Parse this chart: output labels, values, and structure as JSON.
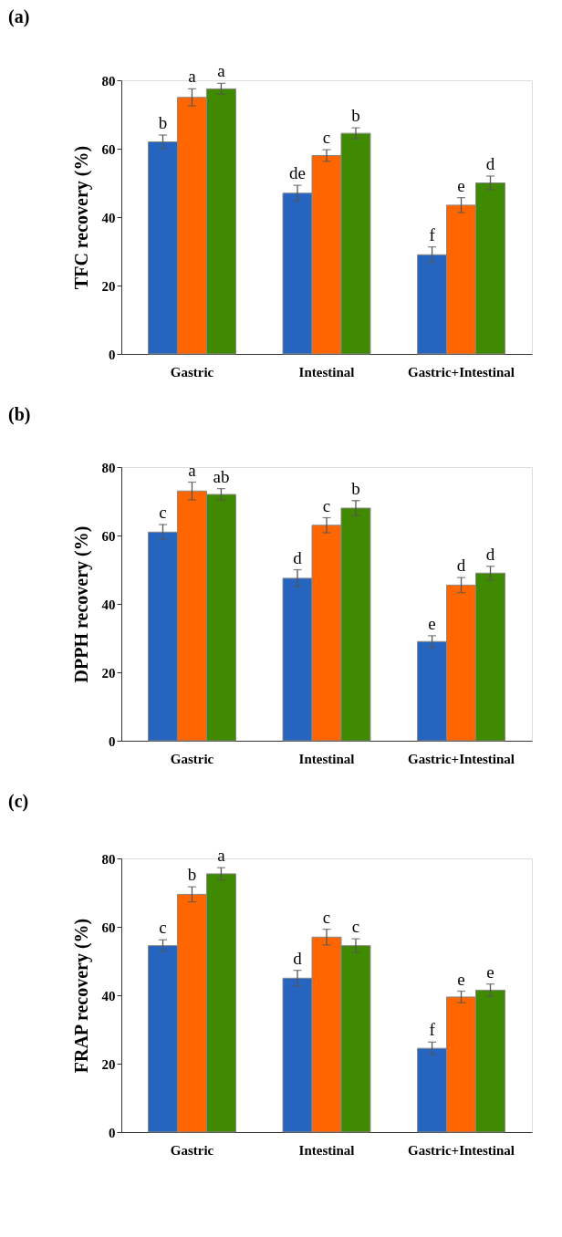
{
  "chart_data": [
    {
      "type": "bar",
      "title": "(a)",
      "ylabel": "TFC recovery (%)",
      "categories": [
        "Gastric",
        "Intestinal",
        "Gastric+Intestinal"
      ],
      "ylim": [
        0,
        80
      ],
      "yticks": [
        0,
        20,
        40,
        60,
        80
      ],
      "grid": false,
      "legend": false,
      "series": [
        {
          "color": "#2565c0",
          "values": [
            62,
            47,
            29
          ],
          "errors": [
            2,
            2.3,
            2.3
          ],
          "value_labels": [
            "b",
            "de",
            "f"
          ]
        },
        {
          "color": "#ff6600",
          "values": [
            75,
            58,
            43.5
          ],
          "errors": [
            2.5,
            1.7,
            2.2
          ],
          "value_labels": [
            "a",
            "c",
            "e"
          ]
        },
        {
          "color": "#3f8a00",
          "values": [
            77.5,
            64.5,
            50
          ],
          "errors": [
            1.6,
            1.6,
            2
          ],
          "value_labels": [
            "a",
            "b",
            "d"
          ]
        }
      ]
    },
    {
      "type": "bar",
      "title": "(b)",
      "ylabel": "DPPH recovery (%)",
      "categories": [
        "Gastric",
        "Intestinal",
        "Gastric+Intestinal"
      ],
      "ylim": [
        0,
        80
      ],
      "yticks": [
        0,
        20,
        40,
        60,
        80
      ],
      "grid": false,
      "legend": false,
      "series": [
        {
          "color": "#2565c0",
          "values": [
            61,
            47.5,
            29
          ],
          "errors": [
            2.2,
            2.5,
            1.7
          ],
          "value_labels": [
            "c",
            "d",
            "e"
          ]
        },
        {
          "color": "#ff6600",
          "values": [
            73,
            63,
            45.5
          ],
          "errors": [
            2.6,
            2.2,
            2.2
          ],
          "value_labels": [
            "a",
            "c",
            "d"
          ]
        },
        {
          "color": "#3f8a00",
          "values": [
            72,
            68,
            49
          ],
          "errors": [
            1.7,
            2.2,
            2
          ],
          "value_labels": [
            "ab",
            "b",
            "d"
          ]
        }
      ]
    },
    {
      "type": "bar",
      "title": "(c)",
      "ylabel": "FRAP recovery (%)",
      "categories": [
        "Gastric",
        "Intestinal",
        "Gastric+Intestinal"
      ],
      "ylim": [
        0,
        80
      ],
      "yticks": [
        0,
        20,
        40,
        60,
        80
      ],
      "grid": false,
      "legend": false,
      "series": [
        {
          "color": "#2565c0",
          "values": [
            54.5,
            45,
            24.5
          ],
          "errors": [
            1.7,
            2.3,
            1.8
          ],
          "value_labels": [
            "c",
            "d",
            "f"
          ]
        },
        {
          "color": "#ff6600",
          "values": [
            69.5,
            57,
            39.5
          ],
          "errors": [
            2.2,
            2.3,
            1.7
          ],
          "value_labels": [
            "b",
            "c",
            "e"
          ]
        },
        {
          "color": "#3f8a00",
          "values": [
            75.5,
            54.5,
            41.5
          ],
          "errors": [
            1.8,
            2,
            1.8
          ],
          "value_labels": [
            "a",
            "c",
            "e"
          ]
        }
      ]
    }
  ]
}
